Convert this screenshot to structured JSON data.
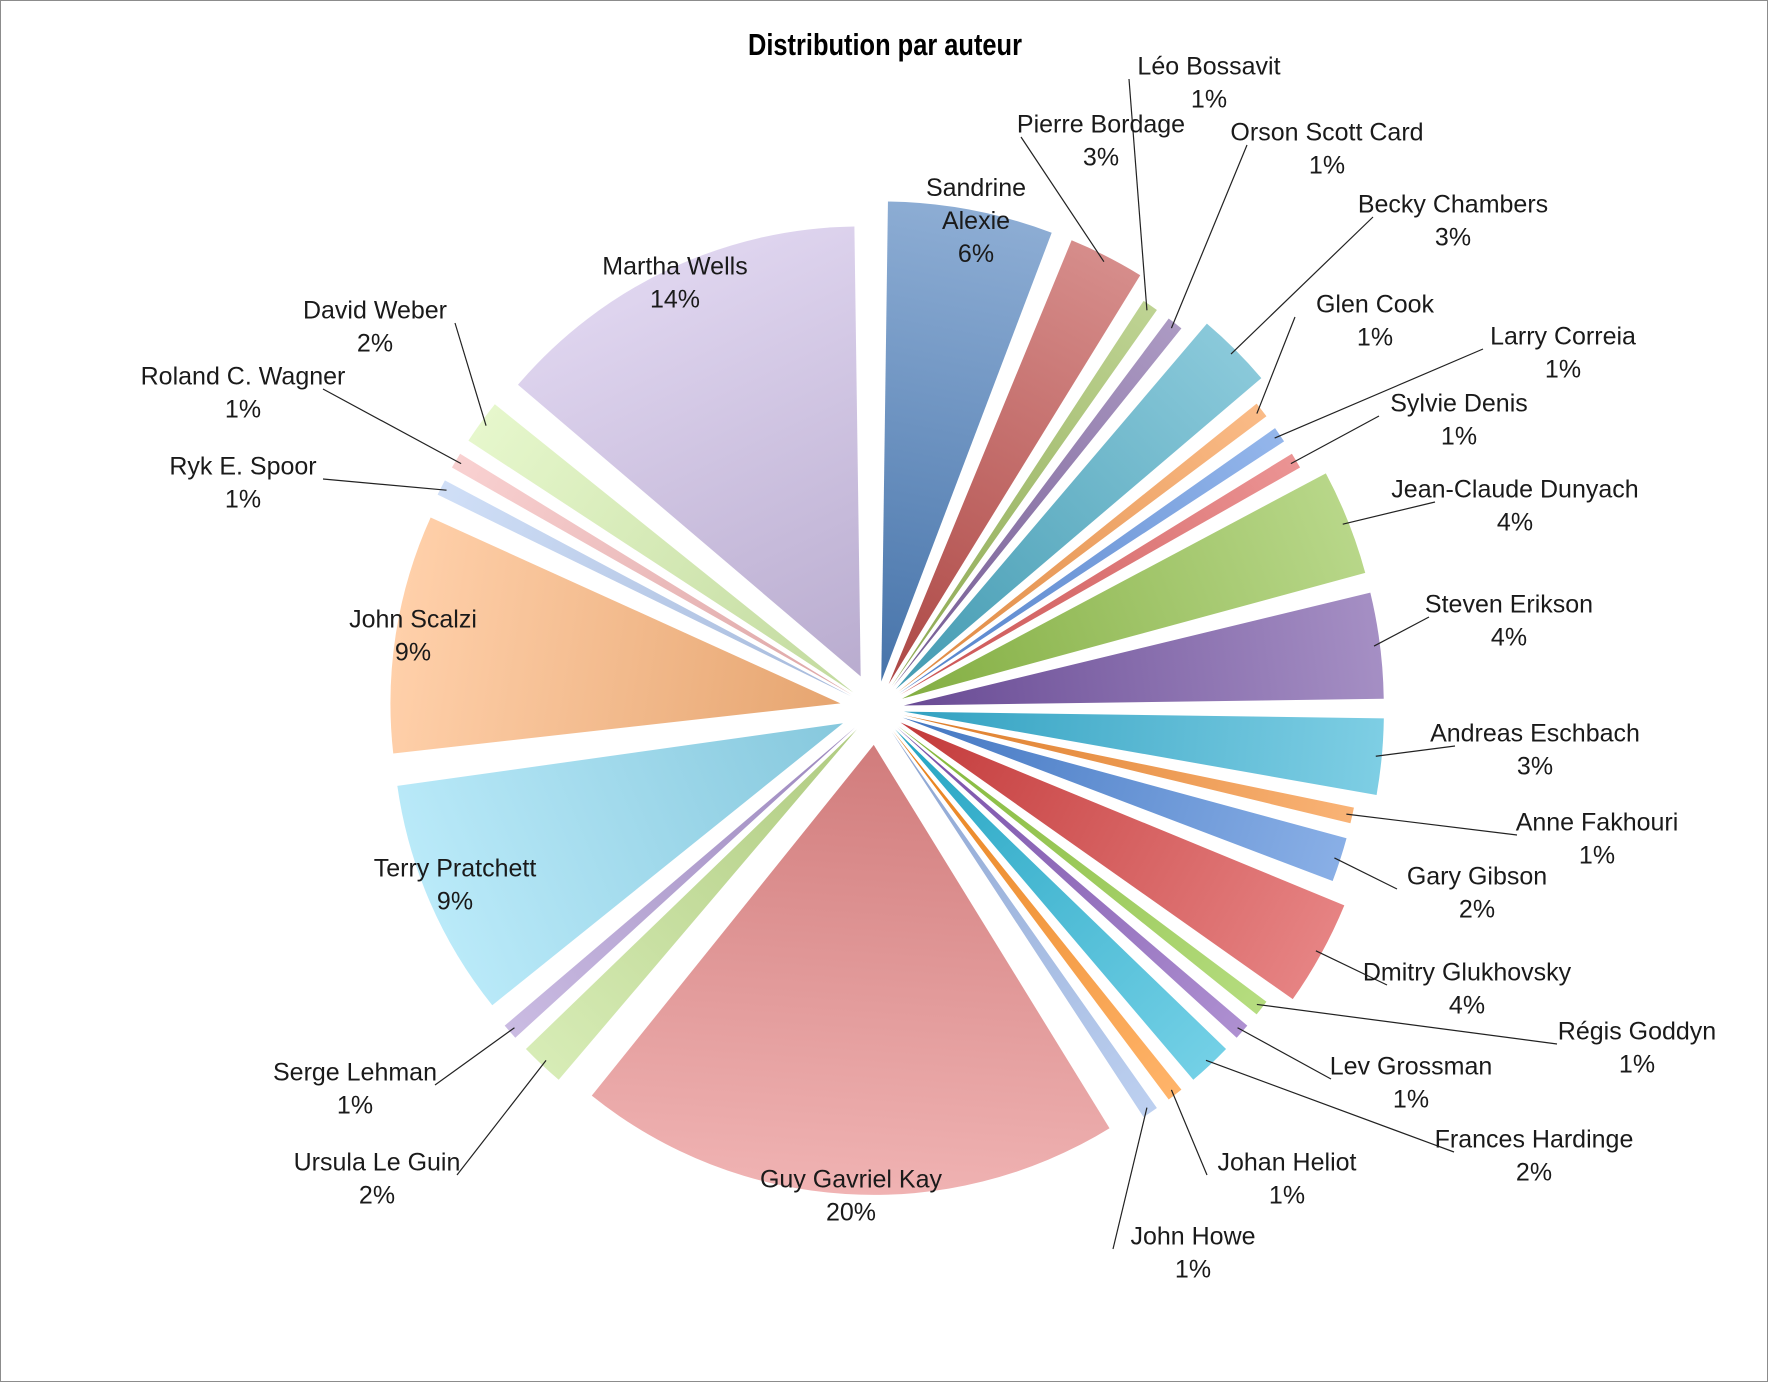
{
  "chart_data": {
    "type": "pie",
    "title": "Distribution par auteur",
    "slices": [
      {
        "name": "Sandrine Alexie",
        "label_lines": [
          "Sandrine",
          "Alexie"
        ],
        "percent_label": "6%",
        "value": 6,
        "color": "#4f81bd"
      },
      {
        "name": "Pierre Bordage",
        "percent_label": "3%",
        "value": 3,
        "color": "#c0504d"
      },
      {
        "name": "Léo Bossavit",
        "percent_label": "1%",
        "value": 1,
        "color": "#9bbb59"
      },
      {
        "name": "Orson Scott Card",
        "percent_label": "1%",
        "value": 1,
        "color": "#8064a2"
      },
      {
        "name": "Becky Chambers",
        "percent_label": "3%",
        "value": 3,
        "color": "#4bacc6"
      },
      {
        "name": "Glen Cook",
        "percent_label": "1%",
        "value": 1,
        "color": "#f79646"
      },
      {
        "name": "Larry Correia",
        "percent_label": "1%",
        "value": 1,
        "color": "#5b8fe0"
      },
      {
        "name": "Sylvie Denis",
        "percent_label": "1%",
        "value": 1,
        "color": "#e05a5a"
      },
      {
        "name": "Jean-Claude Dunyach",
        "percent_label": "4%",
        "value": 4,
        "color": "#92c149"
      },
      {
        "name": "Steven Erikson",
        "percent_label": "4%",
        "value": 4,
        "color": "#7452a4"
      },
      {
        "name": "Andreas Eschbach",
        "percent_label": "3%",
        "value": 3,
        "color": "#38b3d6"
      },
      {
        "name": "Anne Fakhouri",
        "percent_label": "1%",
        "value": 1,
        "color": "#f58a2c"
      },
      {
        "name": "Gary Gibson",
        "percent_label": "2%",
        "value": 2,
        "color": "#4a84d8"
      },
      {
        "name": "Dmitry Glukhovsky",
        "percent_label": "4%",
        "value": 4,
        "color": "#d94040"
      },
      {
        "name": "Régis Goddyn",
        "percent_label": "1%",
        "value": 1,
        "color": "#8fca3c"
      },
      {
        "name": "Lev Grossman",
        "percent_label": "1%",
        "value": 1,
        "color": "#8354b8"
      },
      {
        "name": "Frances Hardinge",
        "percent_label": "2%",
        "value": 2,
        "color": "#28b6d8"
      },
      {
        "name": "Johan Heliot",
        "percent_label": "1%",
        "value": 1,
        "color": "#ff8c1a"
      },
      {
        "name": "John Howe",
        "percent_label": "1%",
        "value": 1,
        "color": "#9ab6e8"
      },
      {
        "name": "Guy Gavriel Kay",
        "percent_label": "20%",
        "value": 20,
        "color": "#e88a8a"
      },
      {
        "name": "Ursula Le Guin",
        "percent_label": "2%",
        "value": 2,
        "color": "#c2e28e"
      },
      {
        "name": "Serge Lehman",
        "percent_label": "1%",
        "value": 1,
        "color": "#ad97d3"
      },
      {
        "name": "Terry Pratchett",
        "percent_label": "9%",
        "value": 9,
        "color": "#95def5"
      },
      {
        "name": "John Scalzi",
        "percent_label": "9%",
        "value": 9,
        "color": "#ffb77c"
      },
      {
        "name": "Ryk E. Spoor",
        "percent_label": "1%",
        "value": 1,
        "color": "#b7cdf3"
      },
      {
        "name": "Roland C. Wagner",
        "percent_label": "1%",
        "value": 1,
        "color": "#f6b8b8"
      },
      {
        "name": "David Weber",
        "percent_label": "2%",
        "value": 2,
        "color": "#d8f2b0"
      },
      {
        "name": "Martha Wells",
        "percent_label": "14%",
        "value": 14,
        "color": "#cdbfe6"
      }
    ]
  }
}
